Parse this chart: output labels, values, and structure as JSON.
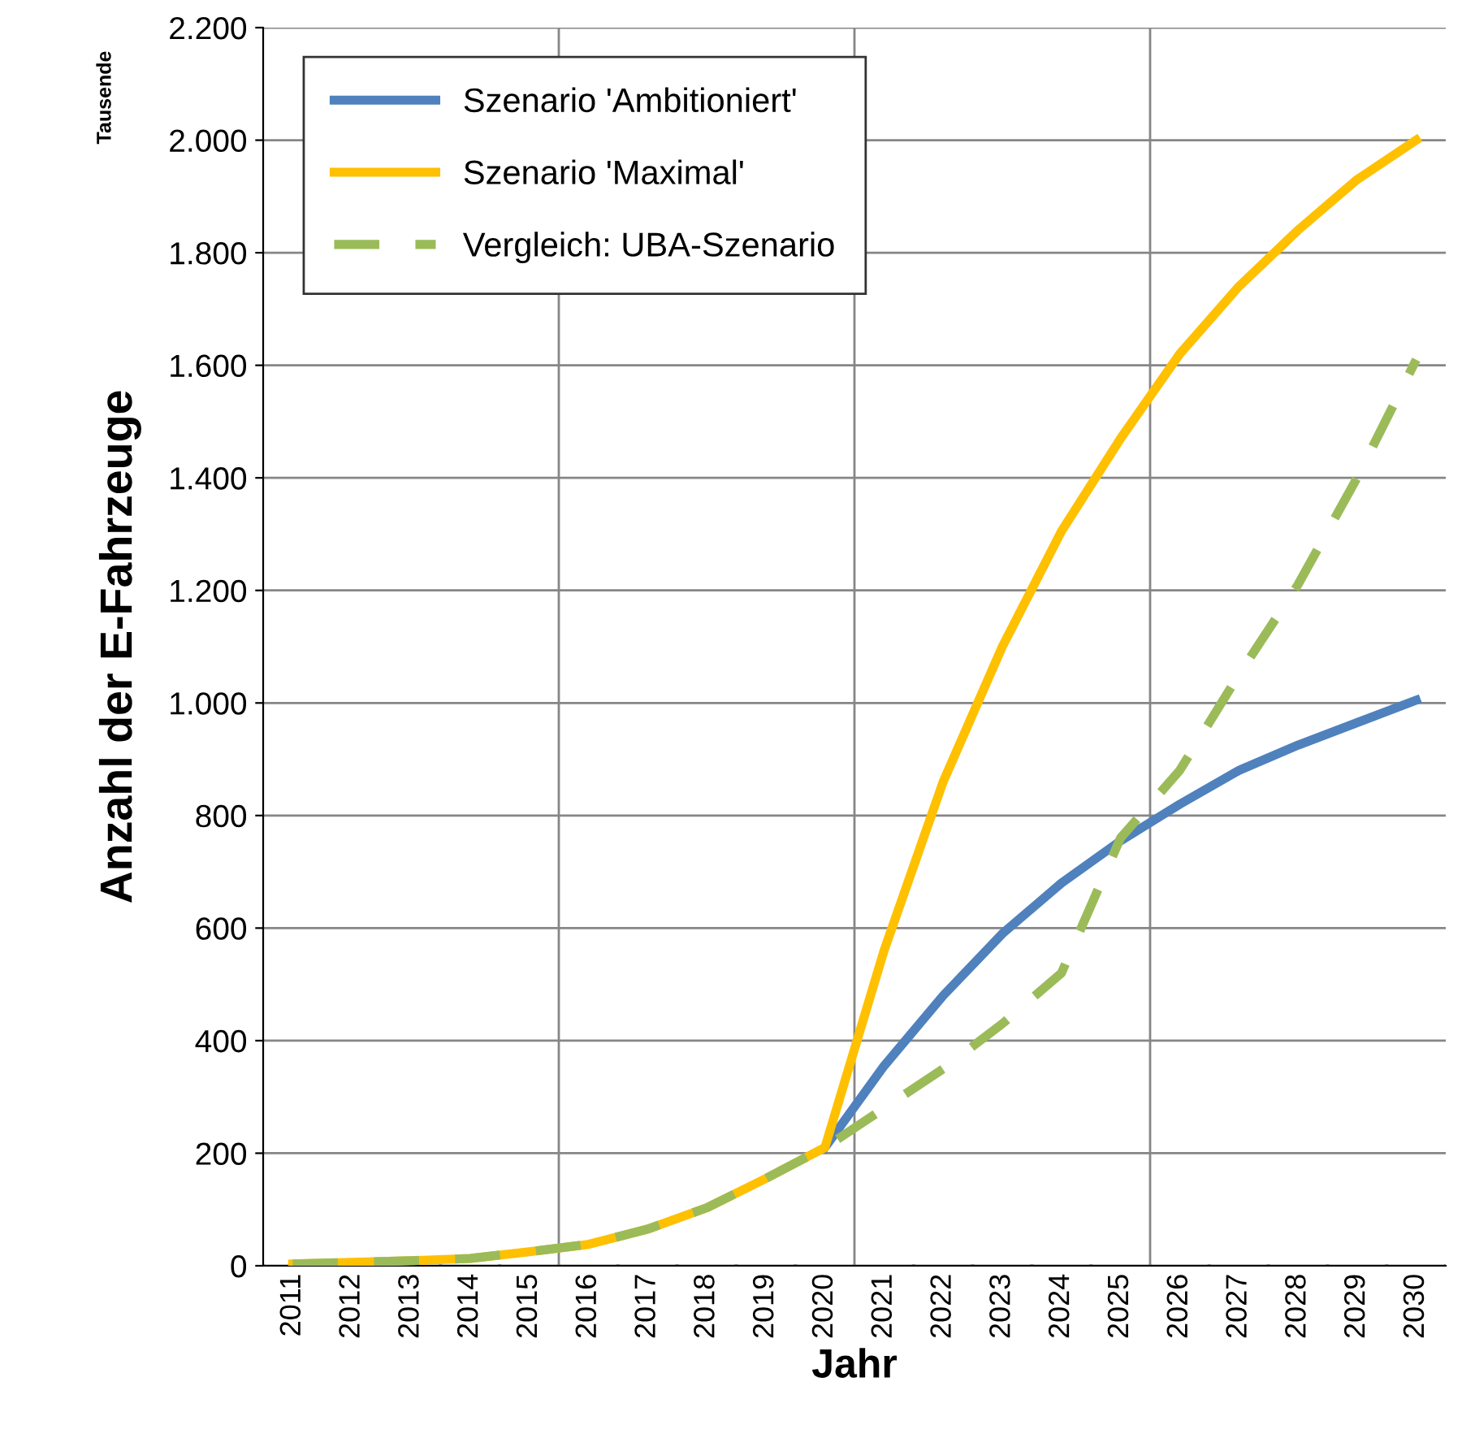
{
  "chart_data": {
    "type": "line",
    "xlabel": "Jahr",
    "ylabel": "Anzahl der E-Fahrzeuge",
    "annotations": [
      "Tausende"
    ],
    "categories": [
      "2011",
      "2012",
      "2013",
      "2014",
      "2015",
      "2016",
      "2017",
      "2018",
      "2019",
      "2020",
      "2021",
      "2022",
      "2023",
      "2024",
      "2025",
      "2026",
      "2027",
      "2028",
      "2029",
      "2030"
    ],
    "series": [
      {
        "name": "Szenario 'Ambitioniert'",
        "color": "#4f81bd",
        "line_style": "solid",
        "values": [
          null,
          null,
          null,
          null,
          null,
          null,
          null,
          null,
          null,
          210,
          355,
          480,
          590,
          680,
          755,
          820,
          880,
          925,
          965,
          1005
        ]
      },
      {
        "name": "Szenario 'Maximal'",
        "color": "#ffc000",
        "line_style": "solid",
        "values": [
          3,
          6,
          9,
          13,
          25,
          38,
          65,
          103,
          155,
          210,
          560,
          860,
          1100,
          1305,
          1470,
          1620,
          1740,
          1840,
          1930,
          2000
        ]
      },
      {
        "name": "Vergleich: UBA-Szenario",
        "color": "#9bbb59",
        "line_style": "dashed",
        "values": [
          3,
          6,
          9,
          13,
          25,
          38,
          65,
          103,
          155,
          210,
          280,
          350,
          430,
          520,
          760,
          880,
          1050,
          1210,
          1400,
          1610
        ]
      }
    ],
    "ylim": [
      0,
      2200
    ],
    "yticks": [
      0,
      200,
      400,
      600,
      800,
      {
        "value": 1000,
        "label": "1.000"
      },
      {
        "value": 1200,
        "label": "1.200"
      },
      {
        "value": 1400,
        "label": "1.400"
      },
      {
        "value": 1600,
        "label": "1.600"
      },
      {
        "value": 1800,
        "label": "1.800"
      },
      {
        "value": 2000,
        "label": "2.000"
      },
      {
        "value": 2200,
        "label": "2.200"
      }
    ],
    "grid": true,
    "legend": "top left",
    "marker": "none"
  }
}
